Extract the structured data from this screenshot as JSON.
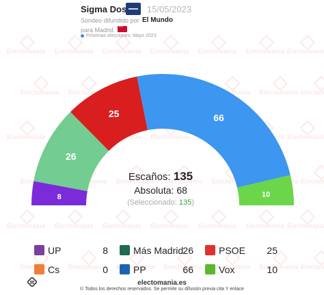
{
  "header": {
    "pollster": "Sigma Dos",
    "date": "15/05/2023",
    "diffused_by_label": "Sondeo difundido por",
    "media": "El Mundo",
    "region_label": "para Madrid",
    "next_elections": "Próximas elecciones: Mayo 2023"
  },
  "watermark": "Electomania",
  "center": {
    "seats_label": "Escaños:",
    "seats_total": "135",
    "majority_text": "Absoluta: 68",
    "selected_prefix": "(Seleccionado:",
    "selected_value": "135",
    "selected_suffix": ")"
  },
  "chart_data": {
    "type": "hemicycle",
    "total_seats": 135,
    "majority": 68,
    "series": [
      {
        "name": "UP",
        "seats": 8,
        "color": "#7b2bd9"
      },
      {
        "name": "Más Madrid",
        "seats": 26,
        "color": "#73cc91"
      },
      {
        "name": "PSOE",
        "seats": 25,
        "color": "#d81e1e"
      },
      {
        "name": "PP",
        "seats": 66,
        "color": "#3d96ef"
      },
      {
        "name": "Vox",
        "seats": 10,
        "color": "#6bd64a"
      }
    ]
  },
  "legend": [
    {
      "name": "UP",
      "value": "8",
      "color": "#7b3fa0",
      "icon": "up-heart-icon"
    },
    {
      "name": "Más Madrid",
      "value": "26",
      "color": "#1f6b4f",
      "icon": "mas-madrid-m-icon"
    },
    {
      "name": "PSOE",
      "value": "25",
      "color": "#e03030",
      "icon": "psoe-rose-icon"
    },
    {
      "name": "Cs",
      "value": "0",
      "color": "#ef7e3a",
      "icon": "cs-icon"
    },
    {
      "name": "PP",
      "value": "66",
      "color": "#1d63b5",
      "icon": "pp-gull-icon"
    },
    {
      "name": "Vox",
      "value": "10",
      "color": "#5cb82e",
      "icon": "vox-icon"
    }
  ],
  "footer": {
    "site": "electomania.es",
    "rights": "© Todos los derechos reservados. Se permite su difusión previa cita Y enlace"
  }
}
